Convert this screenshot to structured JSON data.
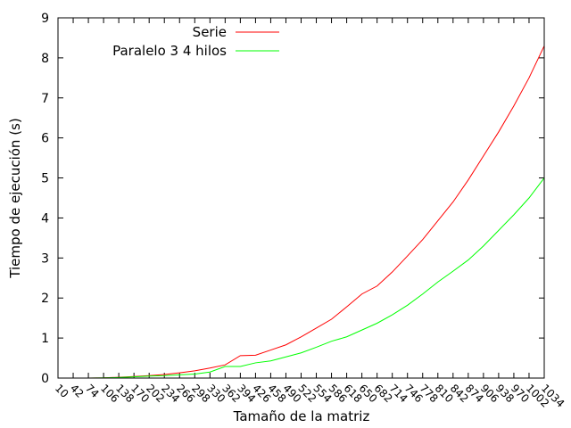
{
  "chart_data": {
    "type": "line",
    "title": "",
    "xlabel": "Tamaño de la matriz",
    "ylabel": "Tiempo de ejecución (s)",
    "ylim": [
      0,
      9
    ],
    "yticks": [
      0,
      1,
      2,
      3,
      4,
      5,
      6,
      7,
      8,
      9
    ],
    "x": [
      10,
      42,
      74,
      106,
      138,
      170,
      202,
      234,
      266,
      298,
      330,
      362,
      394,
      426,
      458,
      490,
      522,
      554,
      586,
      618,
      650,
      682,
      714,
      746,
      778,
      810,
      842,
      874,
      906,
      938,
      970,
      1002,
      1034
    ],
    "grid": false,
    "legend_position": "top",
    "series": [
      {
        "name": "Serie",
        "color": "#ff0000",
        "values": [
          0,
          0,
          0,
          0.005,
          0.02,
          0.04,
          0.06,
          0.09,
          0.13,
          0.18,
          0.25,
          0.33,
          0.56,
          0.57,
          0.7,
          0.83,
          1.03,
          1.25,
          1.47,
          1.78,
          2.1,
          2.3,
          2.65,
          3.05,
          3.46,
          3.93,
          4.4,
          4.95,
          5.55,
          6.15,
          6.8,
          7.5,
          8.3
        ]
      },
      {
        "name": "Paralelo 3 4 hilos",
        "color": "#00ff00",
        "values": [
          0,
          0,
          0,
          0.005,
          0.015,
          0.03,
          0.05,
          0.06,
          0.08,
          0.1,
          0.15,
          0.29,
          0.29,
          0.38,
          0.43,
          0.53,
          0.63,
          0.77,
          0.92,
          1.03,
          1.2,
          1.37,
          1.58,
          1.82,
          2.1,
          2.4,
          2.67,
          2.95,
          3.3,
          3.69,
          4.08,
          4.5,
          5.0
        ]
      }
    ]
  }
}
